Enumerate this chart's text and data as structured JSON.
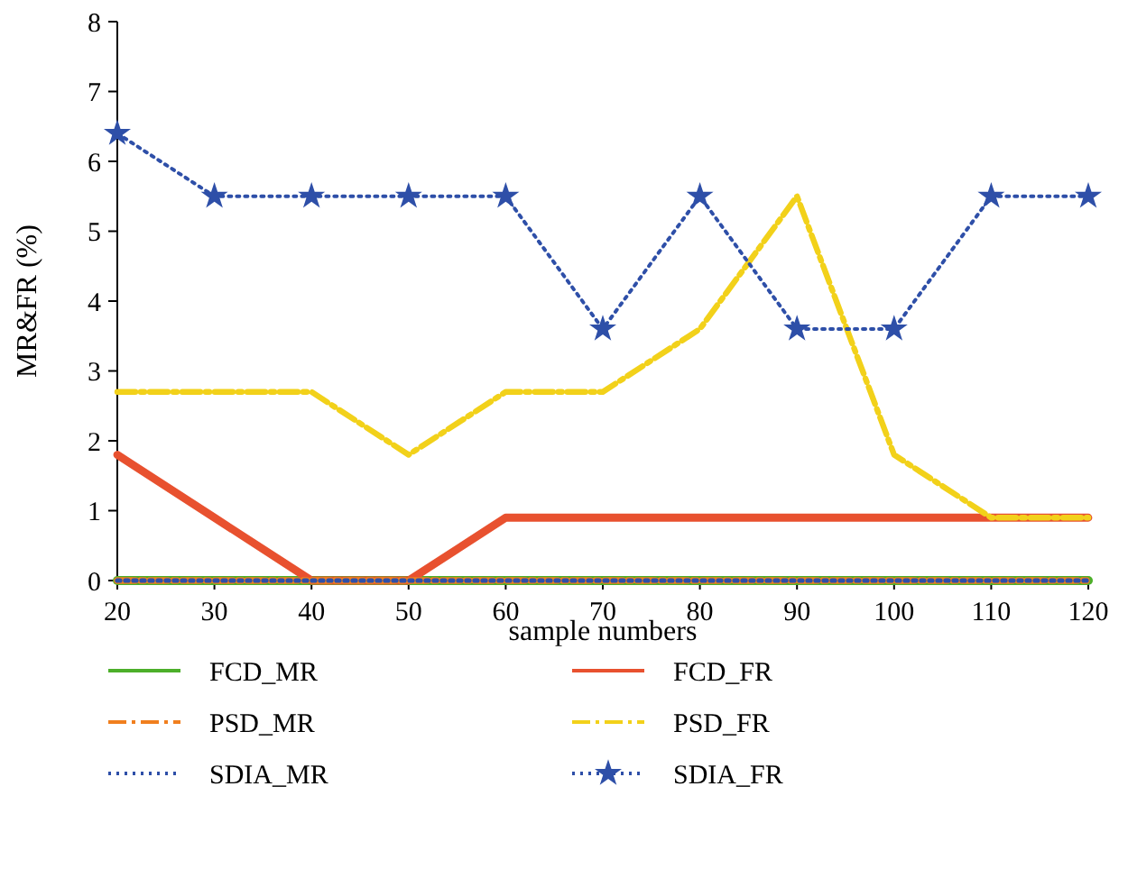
{
  "chart_data": {
    "type": "line",
    "xlabel": "sample numbers",
    "ylabel": "MR&FR (%)",
    "x": [
      20,
      30,
      40,
      50,
      60,
      70,
      80,
      90,
      100,
      110,
      120
    ],
    "xlim": [
      20,
      120
    ],
    "xticks": [
      20,
      30,
      40,
      50,
      60,
      70,
      80,
      90,
      100,
      110,
      120
    ],
    "ylim": [
      0,
      8
    ],
    "yticks": [
      0,
      1,
      2,
      3,
      4,
      5,
      6,
      7,
      8
    ],
    "legend": "bottom",
    "grid": false,
    "series": [
      {
        "name": "FCD_MR",
        "color": "#4caf2a",
        "line_style": "solid",
        "marker": "none",
        "values": [
          0,
          0,
          0,
          0,
          0,
          0,
          0,
          0,
          0,
          0,
          0
        ]
      },
      {
        "name": "FCD_FR",
        "color": "#e8512f",
        "line_style": "solid",
        "marker": "none",
        "values": [
          1.8,
          0.9,
          0,
          0,
          0.9,
          0.9,
          0.9,
          0.9,
          0.9,
          0.9,
          0.9
        ]
      },
      {
        "name": "PSD_MR",
        "color": "#f07f1e",
        "line_style": "dashed",
        "marker": "none",
        "values": [
          0,
          0,
          0,
          0,
          0,
          0,
          0,
          0,
          0,
          0,
          0
        ]
      },
      {
        "name": "PSD_FR",
        "color": "#f2d11a",
        "line_style": "dashed",
        "marker": "none",
        "values": [
          2.7,
          2.7,
          2.7,
          1.8,
          2.7,
          2.7,
          3.6,
          5.5,
          1.8,
          0.9,
          0.9
        ]
      },
      {
        "name": "SDIA_MR",
        "color": "#2e4fa8",
        "line_style": "dotted",
        "marker": "none",
        "values": [
          0,
          0,
          0,
          0,
          0,
          0,
          0,
          0,
          0,
          0,
          0
        ]
      },
      {
        "name": "SDIA_FR",
        "color": "#2e4fa8",
        "line_style": "dotted",
        "marker": "star",
        "values": [
          6.4,
          5.5,
          5.5,
          5.5,
          5.5,
          3.6,
          5.5,
          3.6,
          3.6,
          5.5,
          5.5
        ]
      }
    ]
  }
}
